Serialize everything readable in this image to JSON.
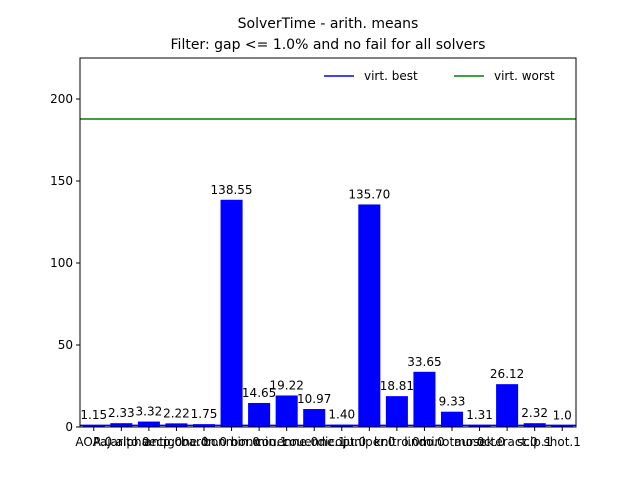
{
  "chart_data": {
    "type": "bar",
    "title": "SolverTime - arith. means",
    "subtitle": "Filter: gap <= 1.0% and no fail for all solvers",
    "categories": [
      "AOA.0",
      "Pajarito.0",
      "alphaecp.0",
      "antigone.0",
      "baron.0",
      "bonmin.0",
      "bonmin.1",
      "couenne.0",
      "couenne.1",
      "dicopt.0",
      "juniper.0",
      "knitro.0",
      "lindo.0",
      "minotaur.0",
      "mosek.0",
      "octeract.0",
      "scip.1",
      "shot.1"
    ],
    "values": [
      1.15,
      2.33,
      3.32,
      2.22,
      1.75,
      138.55,
      14.65,
      19.22,
      10.97,
      1.4,
      135.7,
      18.81,
      33.65,
      9.33,
      1.31,
      26.12,
      2.32,
      1.0
    ],
    "value_labels": [
      "1.15",
      "2.33",
      "3.32",
      "2.22",
      "1.75",
      "138.55",
      "14.65",
      "19.22",
      "10.97",
      "1.40",
      "135.70",
      "18.81",
      "33.65",
      "9.33",
      "1.31",
      "26.12",
      "2.32",
      "1.0"
    ],
    "color": "#0000ff",
    "reference_lines": [
      {
        "name": "virt. best",
        "value": 1.0,
        "color": "#0000ff"
      },
      {
        "name": "virt. worst",
        "value": 187.8,
        "color": "#008000"
      }
    ],
    "legend": "upper right",
    "ylim": [
      0,
      225
    ],
    "yticks": [
      0,
      50,
      100,
      150,
      200
    ],
    "grid": false
  }
}
